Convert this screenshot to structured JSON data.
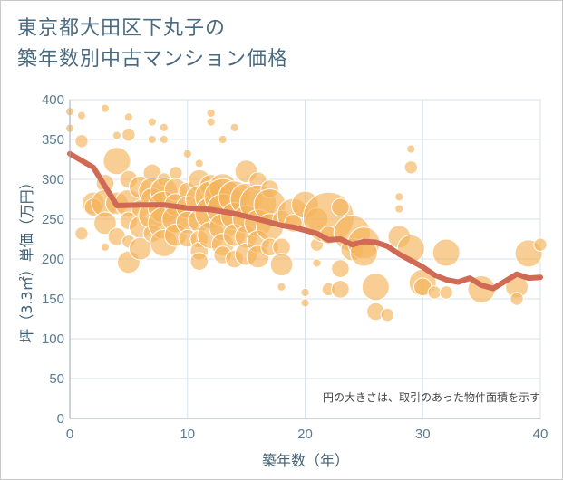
{
  "title_lines": [
    "東京都大田区下丸子の",
    "築年数別中古マンション価格"
  ],
  "chart_data": {
    "type": "scatter",
    "xlabel": "築年数（年）",
    "ylabel": "坪（3.3㎡）単価（万円）",
    "xlim": [
      0,
      40
    ],
    "ylim": [
      0,
      400
    ],
    "xticks": [
      0,
      10,
      20,
      30,
      40
    ],
    "yticks": [
      0,
      50,
      100,
      150,
      200,
      250,
      300,
      350,
      400
    ],
    "annotation": "円の大きさは、取引のあった物件面積を示す",
    "grid": true,
    "colors": {
      "bubble": "#f4b45a",
      "line": "#d06a55",
      "grid": "#d8e2ea",
      "axis": "#9aa9b5"
    },
    "scatter": [
      {
        "x": 0,
        "y": 385,
        "s": 1
      },
      {
        "x": 0,
        "y": 364,
        "s": 1
      },
      {
        "x": 1,
        "y": 380,
        "s": 1
      },
      {
        "x": 1,
        "y": 348,
        "s": 2
      },
      {
        "x": 1,
        "y": 232,
        "s": 2
      },
      {
        "x": 2,
        "y": 270,
        "s": 4
      },
      {
        "x": 2,
        "y": 265,
        "s": 3
      },
      {
        "x": 3,
        "y": 389,
        "s": 1
      },
      {
        "x": 3,
        "y": 295,
        "s": 3
      },
      {
        "x": 3,
        "y": 270,
        "s": 5
      },
      {
        "x": 3,
        "y": 245,
        "s": 4
      },
      {
        "x": 3,
        "y": 215,
        "s": 1
      },
      {
        "x": 4,
        "y": 323,
        "s": 5
      },
      {
        "x": 4,
        "y": 355,
        "s": 1
      },
      {
        "x": 4,
        "y": 270,
        "s": 4
      },
      {
        "x": 4,
        "y": 228,
        "s": 3
      },
      {
        "x": 5,
        "y": 378,
        "s": 1
      },
      {
        "x": 5,
        "y": 356,
        "s": 2
      },
      {
        "x": 5,
        "y": 300,
        "s": 3
      },
      {
        "x": 5,
        "y": 270,
        "s": 5
      },
      {
        "x": 5,
        "y": 248,
        "s": 3
      },
      {
        "x": 5,
        "y": 222,
        "s": 2
      },
      {
        "x": 5,
        "y": 196,
        "s": 4
      },
      {
        "x": 6,
        "y": 290,
        "s": 4
      },
      {
        "x": 6,
        "y": 263,
        "s": 3
      },
      {
        "x": 6,
        "y": 240,
        "s": 4
      },
      {
        "x": 6,
        "y": 213,
        "s": 4
      },
      {
        "x": 7,
        "y": 372,
        "s": 1
      },
      {
        "x": 7,
        "y": 350,
        "s": 1
      },
      {
        "x": 7,
        "y": 308,
        "s": 3
      },
      {
        "x": 7,
        "y": 285,
        "s": 5
      },
      {
        "x": 7,
        "y": 275,
        "s": 4
      },
      {
        "x": 7,
        "y": 255,
        "s": 5
      },
      {
        "x": 7,
        "y": 232,
        "s": 3
      },
      {
        "x": 8,
        "y": 365,
        "s": 1
      },
      {
        "x": 8,
        "y": 350,
        "s": 1
      },
      {
        "x": 8,
        "y": 300,
        "s": 2
      },
      {
        "x": 8,
        "y": 285,
        "s": 5
      },
      {
        "x": 8,
        "y": 265,
        "s": 6
      },
      {
        "x": 8,
        "y": 245,
        "s": 6
      },
      {
        "x": 8,
        "y": 220,
        "s": 5
      },
      {
        "x": 9,
        "y": 308,
        "s": 2
      },
      {
        "x": 9,
        "y": 287,
        "s": 4
      },
      {
        "x": 9,
        "y": 268,
        "s": 4
      },
      {
        "x": 9,
        "y": 250,
        "s": 5
      },
      {
        "x": 9,
        "y": 230,
        "s": 4
      },
      {
        "x": 10,
        "y": 332,
        "s": 1
      },
      {
        "x": 10,
        "y": 285,
        "s": 3
      },
      {
        "x": 10,
        "y": 265,
        "s": 4
      },
      {
        "x": 10,
        "y": 246,
        "s": 4
      },
      {
        "x": 10,
        "y": 226,
        "s": 3
      },
      {
        "x": 11,
        "y": 320,
        "s": 1
      },
      {
        "x": 11,
        "y": 298,
        "s": 4
      },
      {
        "x": 11,
        "y": 275,
        "s": 5
      },
      {
        "x": 11,
        "y": 248,
        "s": 4
      },
      {
        "x": 11,
        "y": 225,
        "s": 3
      },
      {
        "x": 11,
        "y": 210,
        "s": 3
      },
      {
        "x": 11,
        "y": 197,
        "s": 3
      },
      {
        "x": 12,
        "y": 383,
        "s": 1
      },
      {
        "x": 12,
        "y": 372,
        "s": 1
      },
      {
        "x": 12,
        "y": 292,
        "s": 4
      },
      {
        "x": 12,
        "y": 278,
        "s": 6
      },
      {
        "x": 12,
        "y": 258,
        "s": 6
      },
      {
        "x": 12,
        "y": 230,
        "s": 5
      },
      {
        "x": 13,
        "y": 350,
        "s": 1
      },
      {
        "x": 13,
        "y": 290,
        "s": 5
      },
      {
        "x": 13,
        "y": 278,
        "s": 7
      },
      {
        "x": 13,
        "y": 262,
        "s": 6
      },
      {
        "x": 13,
        "y": 240,
        "s": 5
      },
      {
        "x": 13,
        "y": 218,
        "s": 4
      },
      {
        "x": 13,
        "y": 205,
        "s": 3
      },
      {
        "x": 14,
        "y": 365,
        "s": 1
      },
      {
        "x": 14,
        "y": 278,
        "s": 6
      },
      {
        "x": 14,
        "y": 254,
        "s": 5
      },
      {
        "x": 14,
        "y": 230,
        "s": 4
      },
      {
        "x": 14,
        "y": 200,
        "s": 3
      },
      {
        "x": 15,
        "y": 310,
        "s": 4
      },
      {
        "x": 15,
        "y": 275,
        "s": 6
      },
      {
        "x": 15,
        "y": 250,
        "s": 5
      },
      {
        "x": 15,
        "y": 228,
        "s": 4
      },
      {
        "x": 15,
        "y": 206,
        "s": 4
      },
      {
        "x": 16,
        "y": 298,
        "s": 3
      },
      {
        "x": 16,
        "y": 270,
        "s": 7
      },
      {
        "x": 16,
        "y": 245,
        "s": 5
      },
      {
        "x": 16,
        "y": 222,
        "s": 4
      },
      {
        "x": 16,
        "y": 203,
        "s": 4
      },
      {
        "x": 17,
        "y": 288,
        "s": 3
      },
      {
        "x": 17,
        "y": 268,
        "s": 6
      },
      {
        "x": 17,
        "y": 240,
        "s": 5
      },
      {
        "x": 17,
        "y": 215,
        "s": 3
      },
      {
        "x": 18,
        "y": 250,
        "s": 3
      },
      {
        "x": 18,
        "y": 215,
        "s": 3
      },
      {
        "x": 18,
        "y": 193,
        "s": 4
      },
      {
        "x": 18,
        "y": 165,
        "s": 1
      },
      {
        "x": 19,
        "y": 256,
        "s": 6
      },
      {
        "x": 19,
        "y": 245,
        "s": 3
      },
      {
        "x": 20,
        "y": 268,
        "s": 5
      },
      {
        "x": 20,
        "y": 158,
        "s": 1
      },
      {
        "x": 20,
        "y": 145,
        "s": 1
      },
      {
        "x": 21,
        "y": 250,
        "s": 4
      },
      {
        "x": 21,
        "y": 218,
        "s": 2
      },
      {
        "x": 21,
        "y": 195,
        "s": 1
      },
      {
        "x": 22,
        "y": 252,
        "s": 10
      },
      {
        "x": 22,
        "y": 230,
        "s": 3
      },
      {
        "x": 22,
        "y": 162,
        "s": 2
      },
      {
        "x": 23,
        "y": 265,
        "s": 3
      },
      {
        "x": 23,
        "y": 188,
        "s": 3
      },
      {
        "x": 23,
        "y": 162,
        "s": 3
      },
      {
        "x": 24,
        "y": 232,
        "s": 7
      },
      {
        "x": 24,
        "y": 212,
        "s": 4
      },
      {
        "x": 25,
        "y": 220,
        "s": 6
      },
      {
        "x": 25,
        "y": 208,
        "s": 5
      },
      {
        "x": 26,
        "y": 165,
        "s": 5
      },
      {
        "x": 26,
        "y": 134,
        "s": 3
      },
      {
        "x": 27,
        "y": 130,
        "s": 2
      },
      {
        "x": 28,
        "y": 278,
        "s": 1
      },
      {
        "x": 28,
        "y": 263,
        "s": 1
      },
      {
        "x": 28,
        "y": 228,
        "s": 4
      },
      {
        "x": 29,
        "y": 338,
        "s": 1
      },
      {
        "x": 29,
        "y": 315,
        "s": 2
      },
      {
        "x": 29,
        "y": 213,
        "s": 5
      },
      {
        "x": 30,
        "y": 170,
        "s": 5
      },
      {
        "x": 30,
        "y": 165,
        "s": 3
      },
      {
        "x": 31,
        "y": 158,
        "s": 2
      },
      {
        "x": 32,
        "y": 208,
        "s": 5
      },
      {
        "x": 32,
        "y": 158,
        "s": 2
      },
      {
        "x": 35,
        "y": 162,
        "s": 5
      },
      {
        "x": 38,
        "y": 165,
        "s": 4
      },
      {
        "x": 38,
        "y": 150,
        "s": 2
      },
      {
        "x": 39,
        "y": 207,
        "s": 5
      },
      {
        "x": 40,
        "y": 218,
        "s": 2
      }
    ],
    "trend_line": {
      "x": [
        0,
        2,
        4,
        6,
        8,
        10,
        12,
        14,
        16,
        18,
        19,
        20,
        21,
        22,
        23,
        24,
        25,
        26,
        27,
        28,
        29,
        30,
        31,
        32,
        33,
        34,
        35,
        36,
        37,
        38,
        39,
        40
      ],
      "y": [
        332,
        315,
        267,
        268,
        268,
        264,
        262,
        257,
        250,
        242,
        240,
        236,
        232,
        224,
        225,
        218,
        222,
        221,
        216,
        206,
        198,
        190,
        180,
        174,
        171,
        176,
        167,
        163,
        172,
        181,
        176,
        177
      ]
    }
  }
}
